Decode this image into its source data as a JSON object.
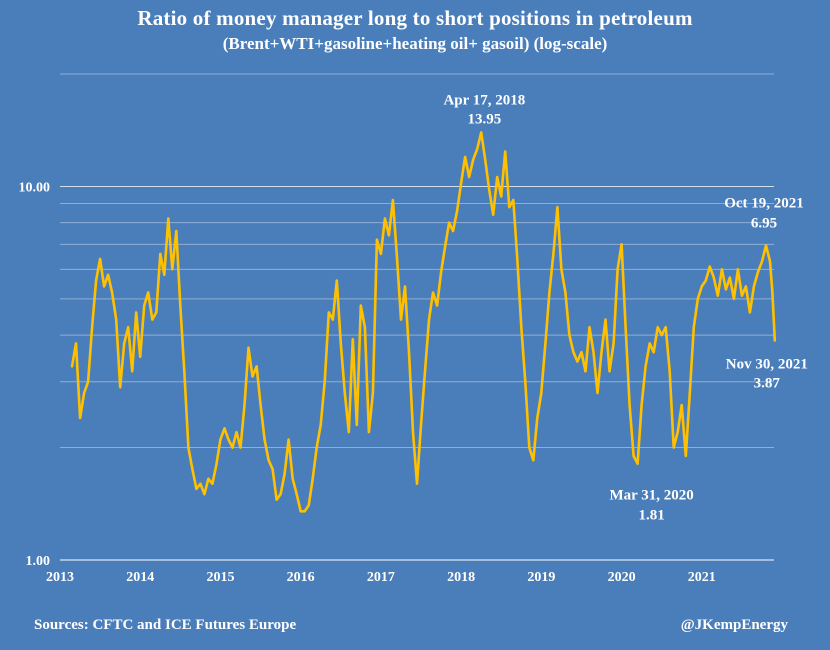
{
  "chart_data": {
    "type": "line",
    "title": "Ratio of money manager long to short positions in petroleum",
    "subtitle": "(Brent+WTI+gasoline+heating oil+ gasoil) (log-scale)",
    "xlabel": "",
    "ylabel": "",
    "y_scale": "log",
    "ylim": [
      1,
      20
    ],
    "xlim": [
      2013.0,
      2021.9
    ],
    "y_ticks": [
      {
        "value": 1,
        "label": "1.00"
      },
      {
        "value": 10,
        "label": "10.00"
      }
    ],
    "x_ticks": [
      {
        "value": 2013,
        "label": "2013"
      },
      {
        "value": 2014,
        "label": "2014"
      },
      {
        "value": 2015,
        "label": "2015"
      },
      {
        "value": 2016,
        "label": "2016"
      },
      {
        "value": 2017,
        "label": "2017"
      },
      {
        "value": 2018,
        "label": "2018"
      },
      {
        "value": 2019,
        "label": "2019"
      },
      {
        "value": 2020,
        "label": "2020"
      },
      {
        "value": 2021,
        "label": "2021"
      }
    ],
    "grid": "horizontal",
    "line_color": "#ffc000",
    "series": [
      {
        "points": [
          [
            2013.15,
            3.3
          ],
          [
            2013.2,
            3.8
          ],
          [
            2013.25,
            2.4
          ],
          [
            2013.3,
            2.8
          ],
          [
            2013.35,
            3.0
          ],
          [
            2013.4,
            4.2
          ],
          [
            2013.45,
            5.6
          ],
          [
            2013.5,
            6.4
          ],
          [
            2013.55,
            5.4
          ],
          [
            2013.6,
            5.8
          ],
          [
            2013.65,
            5.2
          ],
          [
            2013.7,
            4.4
          ],
          [
            2013.75,
            2.9
          ],
          [
            2013.8,
            3.8
          ],
          [
            2013.85,
            4.2
          ],
          [
            2013.9,
            3.2
          ],
          [
            2013.95,
            4.6
          ],
          [
            2014.0,
            3.5
          ],
          [
            2014.05,
            4.8
          ],
          [
            2014.1,
            5.2
          ],
          [
            2014.15,
            4.4
          ],
          [
            2014.2,
            4.6
          ],
          [
            2014.25,
            6.6
          ],
          [
            2014.3,
            5.8
          ],
          [
            2014.35,
            8.2
          ],
          [
            2014.4,
            6.0
          ],
          [
            2014.45,
            7.6
          ],
          [
            2014.5,
            4.8
          ],
          [
            2014.55,
            3.2
          ],
          [
            2014.6,
            2.0
          ],
          [
            2014.65,
            1.75
          ],
          [
            2014.7,
            1.55
          ],
          [
            2014.75,
            1.6
          ],
          [
            2014.8,
            1.5
          ],
          [
            2014.85,
            1.65
          ],
          [
            2014.9,
            1.6
          ],
          [
            2014.95,
            1.8
          ],
          [
            2015.0,
            2.1
          ],
          [
            2015.05,
            2.25
          ],
          [
            2015.1,
            2.1
          ],
          [
            2015.15,
            2.0
          ],
          [
            2015.2,
            2.2
          ],
          [
            2015.25,
            2.0
          ],
          [
            2015.3,
            2.6
          ],
          [
            2015.35,
            3.7
          ],
          [
            2015.4,
            3.1
          ],
          [
            2015.45,
            3.3
          ],
          [
            2015.5,
            2.6
          ],
          [
            2015.55,
            2.1
          ],
          [
            2015.6,
            1.85
          ],
          [
            2015.65,
            1.75
          ],
          [
            2015.7,
            1.45
          ],
          [
            2015.75,
            1.5
          ],
          [
            2015.8,
            1.7
          ],
          [
            2015.85,
            2.1
          ],
          [
            2015.9,
            1.65
          ],
          [
            2015.95,
            1.5
          ],
          [
            2016.0,
            1.35
          ],
          [
            2016.05,
            1.35
          ],
          [
            2016.1,
            1.4
          ],
          [
            2016.15,
            1.65
          ],
          [
            2016.2,
            2.0
          ],
          [
            2016.25,
            2.3
          ],
          [
            2016.3,
            3.0
          ],
          [
            2016.35,
            4.6
          ],
          [
            2016.4,
            4.4
          ],
          [
            2016.45,
            5.6
          ],
          [
            2016.5,
            3.8
          ],
          [
            2016.55,
            2.8
          ],
          [
            2016.6,
            2.2
          ],
          [
            2016.65,
            3.9
          ],
          [
            2016.7,
            2.3
          ],
          [
            2016.75,
            4.8
          ],
          [
            2016.8,
            4.2
          ],
          [
            2016.85,
            2.2
          ],
          [
            2016.9,
            2.8
          ],
          [
            2016.95,
            7.2
          ],
          [
            2017.0,
            6.6
          ],
          [
            2017.05,
            8.2
          ],
          [
            2017.1,
            7.4
          ],
          [
            2017.15,
            9.2
          ],
          [
            2017.2,
            6.5
          ],
          [
            2017.25,
            4.4
          ],
          [
            2017.3,
            5.4
          ],
          [
            2017.35,
            3.6
          ],
          [
            2017.4,
            2.2
          ],
          [
            2017.45,
            1.6
          ],
          [
            2017.5,
            2.3
          ],
          [
            2017.55,
            3.2
          ],
          [
            2017.6,
            4.4
          ],
          [
            2017.65,
            5.2
          ],
          [
            2017.7,
            4.8
          ],
          [
            2017.75,
            5.9
          ],
          [
            2017.8,
            6.9
          ],
          [
            2017.85,
            8.0
          ],
          [
            2017.9,
            7.6
          ],
          [
            2017.95,
            8.6
          ],
          [
            2018.0,
            10.2
          ],
          [
            2018.05,
            12.0
          ],
          [
            2018.1,
            10.6
          ],
          [
            2018.15,
            11.8
          ],
          [
            2018.2,
            12.6
          ],
          [
            2018.25,
            13.95
          ],
          [
            2018.3,
            11.8
          ],
          [
            2018.35,
            9.8
          ],
          [
            2018.4,
            8.4
          ],
          [
            2018.45,
            10.6
          ],
          [
            2018.5,
            9.4
          ],
          [
            2018.55,
            12.4
          ],
          [
            2018.6,
            8.8
          ],
          [
            2018.65,
            9.2
          ],
          [
            2018.7,
            6.4
          ],
          [
            2018.75,
            4.2
          ],
          [
            2018.8,
            3.0
          ],
          [
            2018.85,
            2.0
          ],
          [
            2018.9,
            1.85
          ],
          [
            2018.95,
            2.4
          ],
          [
            2019.0,
            2.8
          ],
          [
            2019.05,
            3.8
          ],
          [
            2019.1,
            5.2
          ],
          [
            2019.15,
            6.6
          ],
          [
            2019.2,
            8.8
          ],
          [
            2019.25,
            6.0
          ],
          [
            2019.3,
            5.2
          ],
          [
            2019.35,
            4.0
          ],
          [
            2019.4,
            3.6
          ],
          [
            2019.45,
            3.4
          ],
          [
            2019.5,
            3.6
          ],
          [
            2019.55,
            3.2
          ],
          [
            2019.6,
            4.2
          ],
          [
            2019.65,
            3.6
          ],
          [
            2019.7,
            2.8
          ],
          [
            2019.75,
            3.6
          ],
          [
            2019.8,
            4.4
          ],
          [
            2019.85,
            3.2
          ],
          [
            2019.9,
            3.8
          ],
          [
            2019.95,
            6.0
          ],
          [
            2020.0,
            7.0
          ],
          [
            2020.05,
            4.2
          ],
          [
            2020.1,
            2.6
          ],
          [
            2020.15,
            1.9
          ],
          [
            2020.2,
            1.81
          ],
          [
            2020.25,
            2.6
          ],
          [
            2020.3,
            3.3
          ],
          [
            2020.35,
            3.8
          ],
          [
            2020.4,
            3.6
          ],
          [
            2020.45,
            4.2
          ],
          [
            2020.5,
            4.0
          ],
          [
            2020.55,
            4.2
          ],
          [
            2020.6,
            3.2
          ],
          [
            2020.65,
            2.0
          ],
          [
            2020.7,
            2.2
          ],
          [
            2020.75,
            2.6
          ],
          [
            2020.8,
            1.9
          ],
          [
            2020.85,
            2.8
          ],
          [
            2020.9,
            4.2
          ],
          [
            2020.95,
            5.0
          ],
          [
            2021.0,
            5.4
          ],
          [
            2021.05,
            5.6
          ],
          [
            2021.1,
            6.1
          ],
          [
            2021.15,
            5.7
          ],
          [
            2021.2,
            5.1
          ],
          [
            2021.25,
            6.0
          ],
          [
            2021.3,
            5.3
          ],
          [
            2021.35,
            5.7
          ],
          [
            2021.4,
            5.0
          ],
          [
            2021.45,
            6.0
          ],
          [
            2021.5,
            5.1
          ],
          [
            2021.55,
            5.4
          ],
          [
            2021.6,
            4.6
          ],
          [
            2021.65,
            5.4
          ],
          [
            2021.7,
            5.9
          ],
          [
            2021.75,
            6.3
          ],
          [
            2021.8,
            6.95
          ],
          [
            2021.85,
            6.3
          ],
          [
            2021.88,
            5.2
          ],
          [
            2021.91,
            3.87
          ]
        ]
      }
    ],
    "annotations": [
      {
        "date": "Apr 17, 2018",
        "value_label": "13.95",
        "x": 2018.29,
        "y": 13.95,
        "position": "above"
      },
      {
        "date": "Oct 19, 2021",
        "value_label": "6.95",
        "x": 2021.8,
        "y": 6.95,
        "position": "above"
      },
      {
        "date": "Nov 30, 2021",
        "value_label": "3.87",
        "x": 2021.91,
        "y": 3.87,
        "position": "below"
      },
      {
        "date": "Mar 31, 2020",
        "value_label": "1.81",
        "x": 2020.25,
        "y": 1.81,
        "position": "below"
      }
    ]
  },
  "footer": {
    "sources": "Sources: CFTC and ICE Futures Europe",
    "handle": "@JKempEnergy"
  }
}
